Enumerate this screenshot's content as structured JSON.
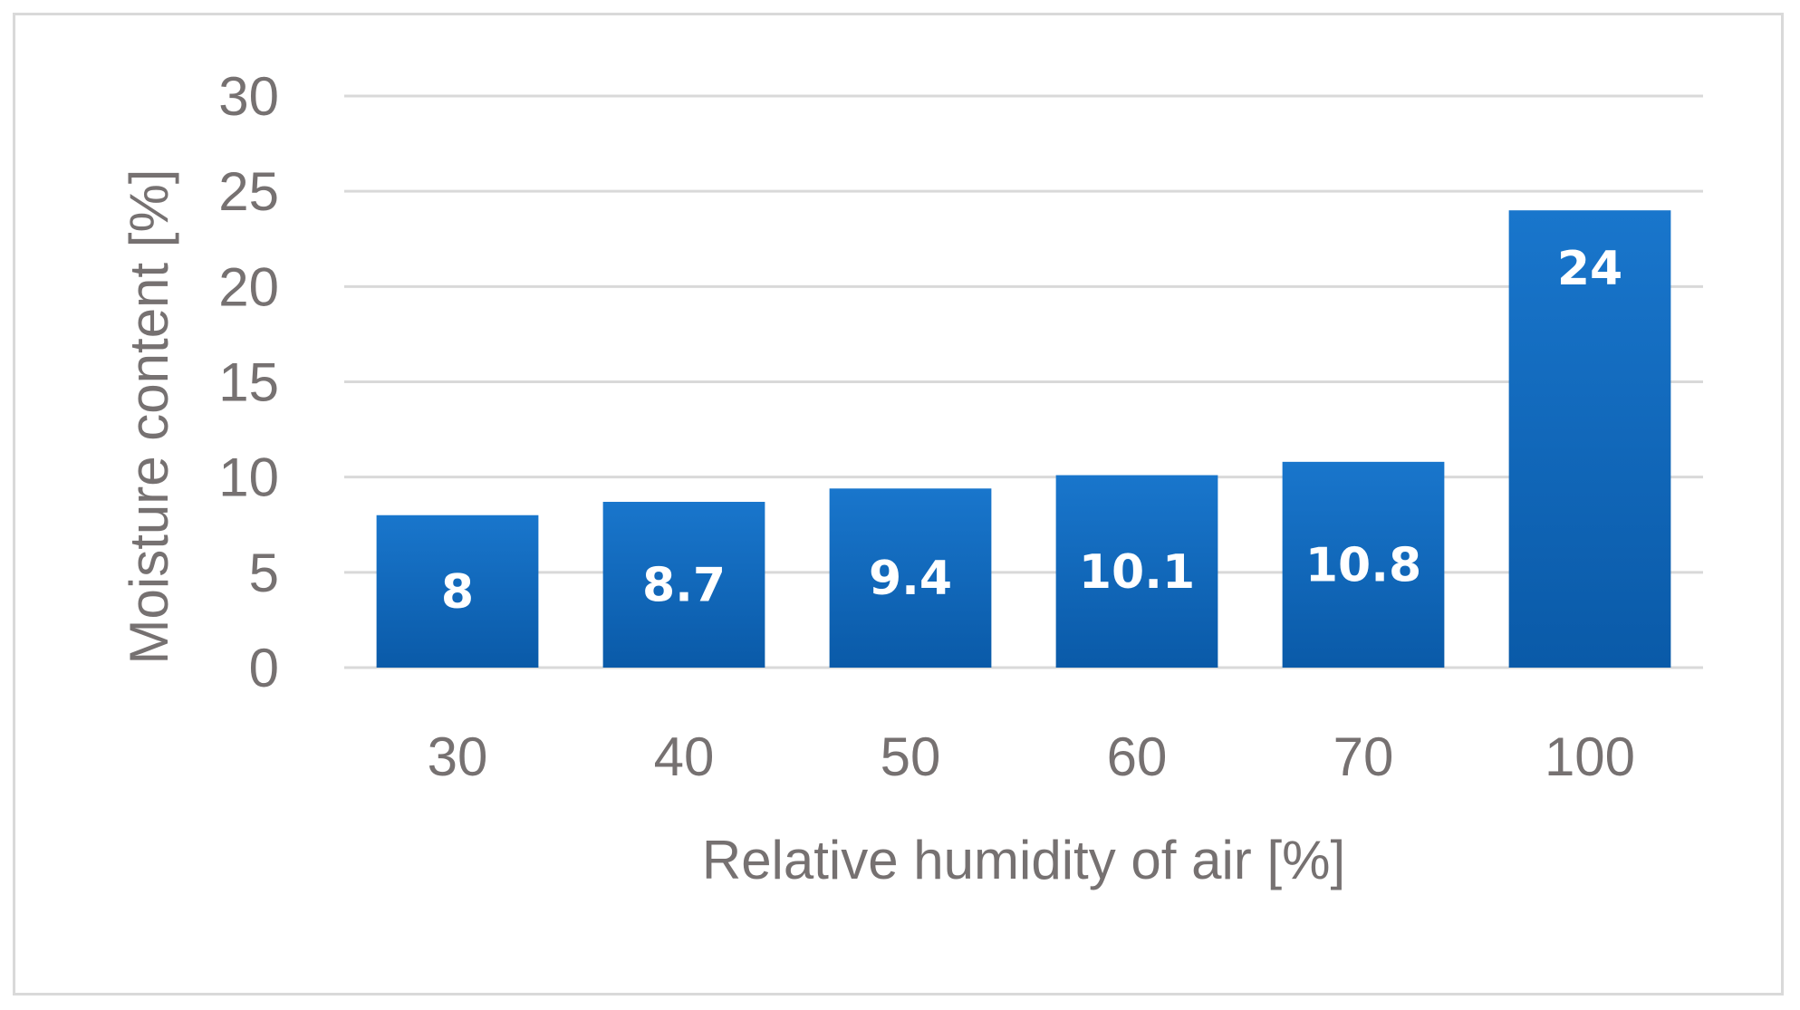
{
  "chart_data": {
    "type": "bar",
    "categories": [
      "30",
      "40",
      "50",
      "60",
      "70",
      "100"
    ],
    "values": [
      8,
      8.7,
      9.4,
      10.1,
      10.8,
      24
    ],
    "data_labels": [
      "8",
      "8.7",
      "9.4",
      "10.1",
      "10.8",
      "24"
    ],
    "y_ticks": [
      "0",
      "5",
      "10",
      "15",
      "20",
      "25",
      "30"
    ],
    "ylim": [
      0,
      30
    ],
    "xlabel": "Relative humidity of air [%]",
    "ylabel": "Moisture content [%]",
    "grid": true,
    "legend": "none",
    "colors": {
      "bar_top": "#1976cc",
      "bar_bottom": "#0a5aa8",
      "grid": "#d9d9d9",
      "text": "#767171",
      "border": "#d9d9d9"
    }
  }
}
